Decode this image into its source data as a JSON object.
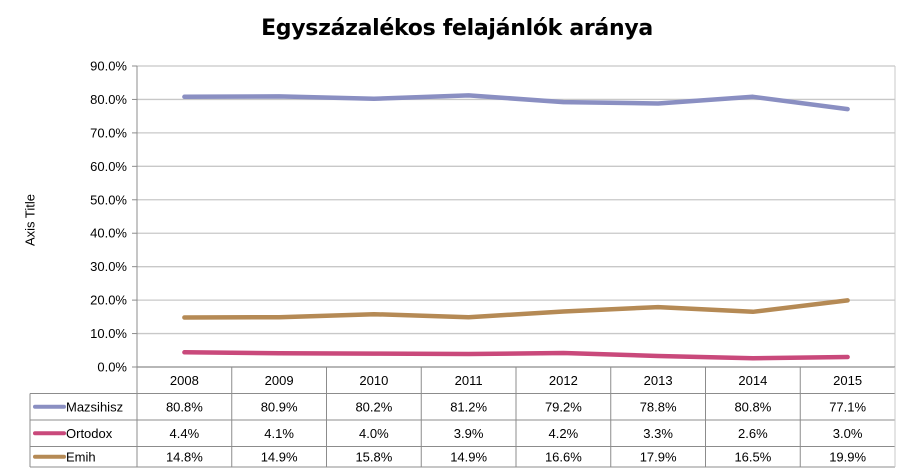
{
  "chart_data": {
    "type": "line",
    "title": "Egyszázalékos felajánlók aránya",
    "xlabel": "",
    "ylabel": "Axis Title",
    "ylim": [
      0,
      90
    ],
    "yticks": [
      "0.0%",
      "10.0%",
      "20.0%",
      "30.0%",
      "40.0%",
      "50.0%",
      "60.0%",
      "70.0%",
      "80.0%",
      "90.0%"
    ],
    "grid": true,
    "legend": "data-table",
    "categories": [
      "2008",
      "2009",
      "2010",
      "2011",
      "2012",
      "2013",
      "2014",
      "2015"
    ],
    "series": [
      {
        "name": "Mazsihisz",
        "color": "#8a8fc2",
        "values": [
          80.8,
          80.9,
          80.2,
          81.2,
          79.2,
          78.8,
          80.8,
          77.1
        ],
        "labels": [
          "80.8%",
          "80.9%",
          "80.2%",
          "81.2%",
          "79.2%",
          "78.8%",
          "80.8%",
          "77.1%"
        ]
      },
      {
        "name": "Ortodox",
        "color": "#c9497b",
        "values": [
          4.4,
          4.1,
          4.0,
          3.9,
          4.2,
          3.3,
          2.6,
          3.0
        ],
        "labels": [
          "4.4%",
          "4.1%",
          "4.0%",
          "3.9%",
          "4.2%",
          "3.3%",
          "2.6%",
          "3.0%"
        ]
      },
      {
        "name": "Emih",
        "color": "#b58a55",
        "values": [
          14.8,
          14.9,
          15.8,
          14.9,
          16.6,
          17.9,
          16.5,
          19.9
        ],
        "labels": [
          "14.8%",
          "14.9%",
          "15.8%",
          "14.9%",
          "16.6%",
          "17.9%",
          "16.5%",
          "19.9%"
        ]
      }
    ]
  }
}
